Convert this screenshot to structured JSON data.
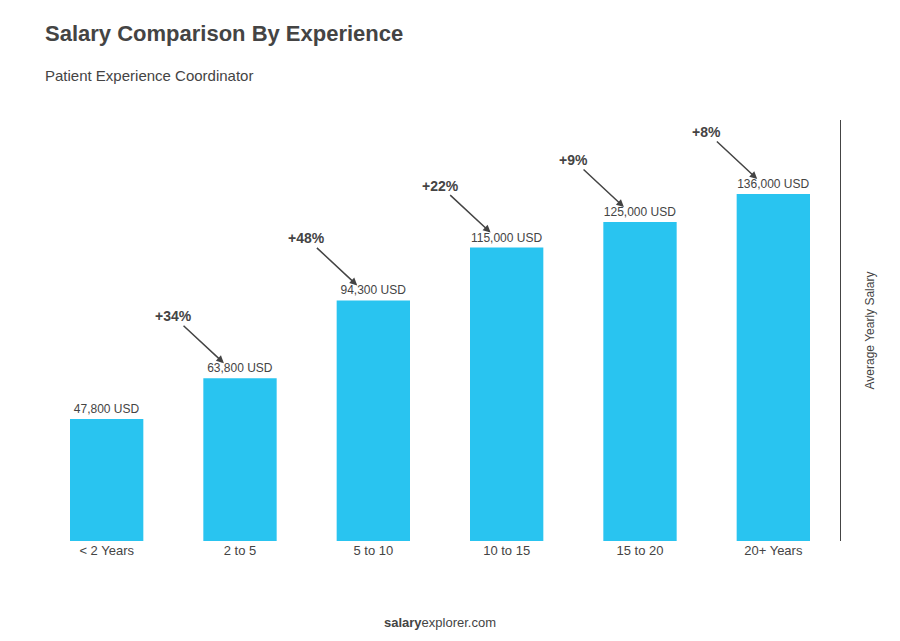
{
  "chart_data": {
    "type": "bar",
    "title": "Salary Comparison By Experience",
    "subtitle": "Patient Experience Coordinator",
    "ylabel": "Average Yearly Salary",
    "categories": [
      "< 2 Years",
      "2 to 5",
      "5 to 10",
      "10 to 15",
      "15 to 20",
      "20+ Years"
    ],
    "values": [
      47800,
      63800,
      94300,
      115000,
      125000,
      136000
    ],
    "value_labels": [
      "47,800 USD",
      "63,800 USD",
      "94,300 USD",
      "115,000 USD",
      "125,000 USD",
      "136,000 USD"
    ],
    "data_labels": true,
    "color": "#29c4f0",
    "ylim": [
      0,
      165000
    ],
    "yticks": [],
    "grid": false,
    "tick_labels": "x",
    "annotations": [
      "+34%",
      "+48%",
      "+22%",
      "+9%",
      "+8%"
    ],
    "footer": [
      "salary",
      "explorer.com"
    ]
  }
}
